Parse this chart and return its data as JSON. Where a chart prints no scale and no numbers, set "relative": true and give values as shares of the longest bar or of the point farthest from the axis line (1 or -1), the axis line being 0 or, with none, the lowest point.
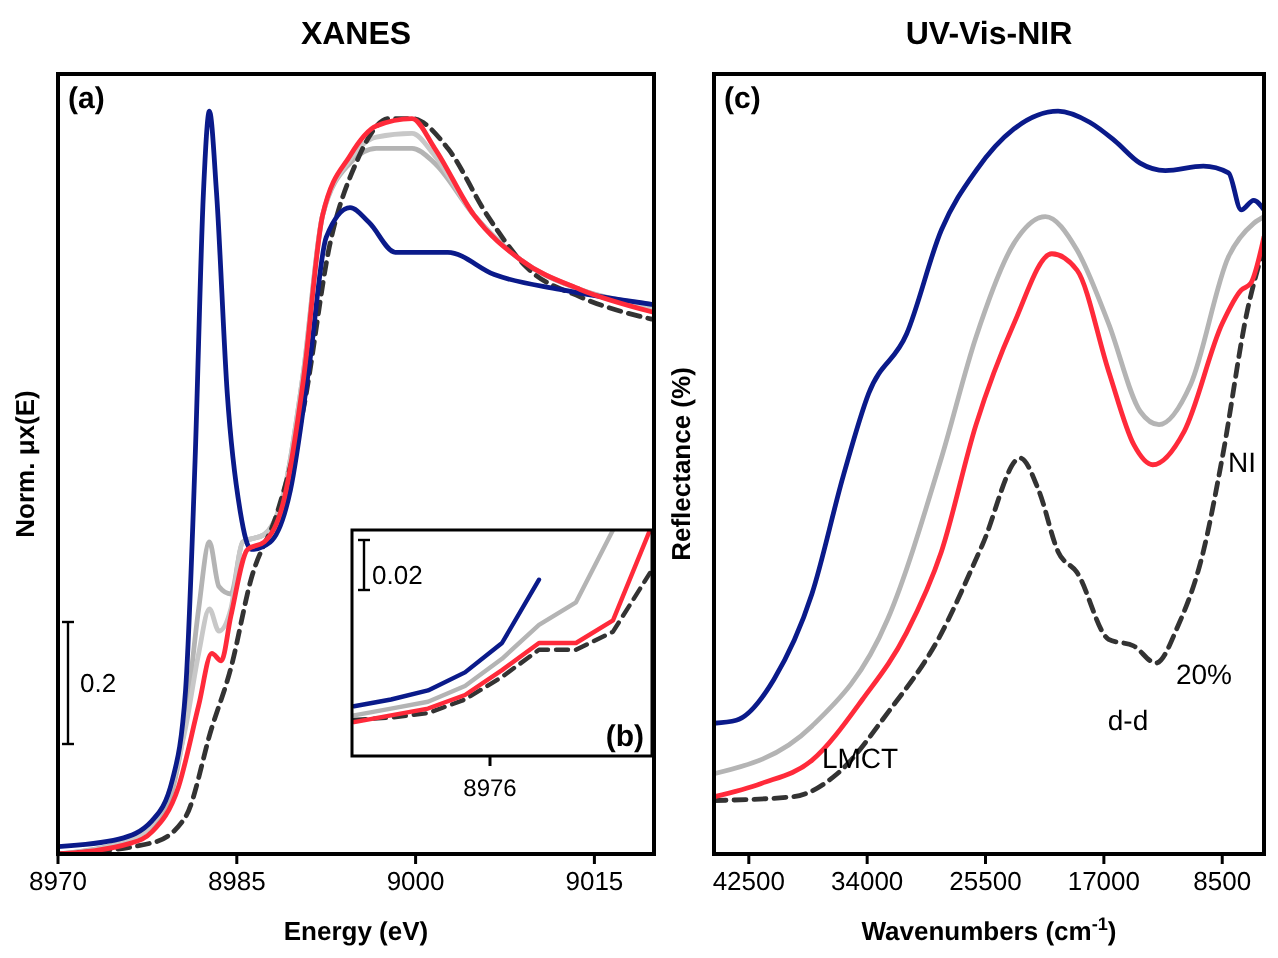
{
  "chart_data": [
    {
      "type": "line",
      "title": "XANES",
      "xlabel": "Energy (eV)",
      "ylabel": "Norm. μx(E)",
      "relative": true,
      "xlim": [
        8970,
        9020
      ],
      "xticks": [
        8970,
        8985,
        9000,
        9015
      ],
      "annotations": [
        "(a)",
        "0.2"
      ],
      "series": [
        {
          "color": "#b4b4b4",
          "x": [
            8970,
            8976,
            8979,
            8980.7,
            8981.8,
            8982.7,
            8983.5,
            8984.5,
            8985.5,
            8987.3,
            8989,
            8990.6,
            8992.2,
            8994.5,
            8996.7,
            8999.7,
            9001.6,
            9004.9,
            9008.8,
            9013.8,
            9019.8
          ],
          "values": [
            0,
            0.02,
            0.06,
            0.18,
            0.33,
            0.42,
            0.36,
            0.35,
            0.42,
            0.43,
            0.49,
            0.65,
            0.86,
            0.93,
            0.95,
            0.95,
            0.93,
            0.86,
            0.8,
            0.76,
            0.74
          ]
        },
        {
          "color": "#c8c8c8",
          "x": [
            8970,
            8976,
            8979,
            8980.7,
            8981.8,
            8982.7,
            8983.5,
            8984.5,
            8985.5,
            8987.3,
            8989,
            8990.6,
            8992.2,
            8994.5,
            8996.7,
            8999.7,
            9001.6,
            9004.9,
            9008.8,
            9013.8,
            9019.8
          ],
          "values": [
            0,
            0.018,
            0.07,
            0.17,
            0.27,
            0.33,
            0.3,
            0.33,
            0.42,
            0.43,
            0.49,
            0.65,
            0.86,
            0.935,
            0.965,
            0.97,
            0.94,
            0.86,
            0.8,
            0.76,
            0.735
          ]
        },
        {
          "color": "#333333",
          "line_style": "dashed",
          "x": [
            8970,
            8977.9,
            8980.7,
            8982.9,
            8984.5,
            8986.2,
            8988.4,
            8990.6,
            8992.8,
            8995,
            8997.8,
            8999.7,
            9002.7,
            9006,
            9009.3,
            9013.8,
            9019.8
          ],
          "values": [
            0,
            0.015,
            0.05,
            0.17,
            0.25,
            0.37,
            0.46,
            0.6,
            0.82,
            0.93,
            0.99,
            0.99,
            0.95,
            0.86,
            0.79,
            0.75,
            0.72
          ]
        },
        {
          "color": "#0a1a8a",
          "x": [
            8970,
            8975.1,
            8977.9,
            8979.6,
            8980.7,
            8981.5,
            8982.2,
            8982.7,
            8983.3,
            8984.2,
            8985.3,
            8986.2,
            8987.8,
            8989.5,
            8991.1,
            8992.5,
            8994.5,
            8996.1,
            8998.3,
            9002.7,
            9006.6,
            9012.1,
            9019.8
          ],
          "values": [
            0.01,
            0.02,
            0.045,
            0.1,
            0.22,
            0.53,
            0.89,
            1,
            0.89,
            0.62,
            0.46,
            0.41,
            0.42,
            0.49,
            0.66,
            0.83,
            0.87,
            0.85,
            0.81,
            0.81,
            0.78,
            0.76,
            0.74
          ]
        },
        {
          "color": "#ff2a3a",
          "x": [
            8970,
            8976.2,
            8977.9,
            8980.1,
            8981.8,
            8982.9,
            8983.7,
            8984.5,
            8985.9,
            8987.3,
            8989,
            8990.6,
            8992.2,
            8994.5,
            8996.7,
            8999.7,
            9001.6,
            9004.9,
            9008.8,
            9013.8,
            9019.8
          ],
          "values": [
            0,
            0.015,
            0.03,
            0.09,
            0.2,
            0.27,
            0.26,
            0.32,
            0.41,
            0.42,
            0.48,
            0.64,
            0.86,
            0.94,
            0.98,
            0.99,
            0.95,
            0.86,
            0.8,
            0.76,
            0.73
          ]
        }
      ]
    },
    {
      "type": "line",
      "relative": true,
      "annotations": [
        "(b)",
        "0.02",
        "8976"
      ],
      "categories": [
        null,
        null,
        null,
        null,
        null,
        null,
        null,
        null,
        null
      ],
      "series": [
        {
          "color": "#b4b4b4",
          "values": [
            0.18,
            0.21,
            0.24,
            0.31,
            0.43,
            0.58,
            0.68,
            1,
            null
          ]
        },
        {
          "color": "#333333",
          "line_style": "dashed",
          "values": [
            0.16,
            0.17,
            0.19,
            0.25,
            0.35,
            0.47,
            0.47,
            0.55,
            0.81
          ]
        },
        {
          "color": "#0a1a8a",
          "values": [
            0.22,
            0.25,
            0.29,
            0.37,
            0.5,
            0.78,
            null,
            null,
            null
          ]
        },
        {
          "color": "#ff2a3a",
          "values": [
            0.15,
            0.18,
            0.21,
            0.27,
            0.38,
            0.5,
            0.5,
            0.6,
            1
          ]
        }
      ]
    },
    {
      "type": "line",
      "title": "UV-Vis-NIR",
      "xlabel": "Wavenumbers (cm$^{-1}$)",
      "ylabel": "Reflectance (%)",
      "relative": true,
      "xlim": [
        45000,
        5500
      ],
      "xticks": [
        42500,
        34000,
        25500,
        17000,
        8500
      ],
      "annotations": [
        "(c)",
        "LMCT",
        "d-d",
        "NI",
        "20%"
      ],
      "series": [
        {
          "color": "#b4b4b4",
          "x": [
            45000,
            37970,
            32530,
            28670,
            26180,
            23460,
            21200,
            18930,
            16660,
            14400,
            13040,
            10770,
            8050,
            6240,
            5500
          ],
          "values": [
            0.108,
            0.172,
            0.316,
            0.533,
            0.696,
            0.822,
            0.858,
            0.813,
            0.714,
            0.596,
            0.578,
            0.632,
            0.804,
            0.849,
            0.858
          ]
        },
        {
          "color": "#333333",
          "line_style": "dashed",
          "x": [
            45000,
            39330,
            36150,
            32530,
            28900,
            25730,
            23010,
            21650,
            20290,
            18930,
            16660,
            14850,
            13260,
            11680,
            9860,
            8500,
            6690,
            5560
          ],
          "values": [
            0.072,
            0.077,
            0.108,
            0.19,
            0.289,
            0.416,
            0.533,
            0.488,
            0.407,
            0.379,
            0.289,
            0.28,
            0.257,
            0.307,
            0.407,
            0.533,
            0.732,
            0.813
          ]
        },
        {
          "color": "#0a1a8a",
          "x": [
            45000,
            43400,
            40700,
            37970,
            35700,
            33890,
            31170,
            28670,
            26180,
            23460,
            20290,
            18020,
            16210,
            14400,
            12580,
            9860,
            8050,
            7140,
            6240,
            5500
          ],
          "values": [
            0.176,
            0.18,
            0.235,
            0.35,
            0.51,
            0.62,
            0.7,
            0.84,
            0.92,
            0.976,
            1,
            0.985,
            0.96,
            0.93,
            0.92,
            0.926,
            0.917,
            0.867,
            0.88,
            0.867
          ]
        },
        {
          "color": "#ff2a3a",
          "x": [
            45000,
            41600,
            37970,
            34340,
            31170,
            28670,
            26180,
            23460,
            20740,
            18930,
            16660,
            14850,
            13490,
            11230,
            8500,
            7140,
            6460,
            5500
          ],
          "values": [
            0.077,
            0.095,
            0.126,
            0.208,
            0.298,
            0.407,
            0.578,
            0.714,
            0.808,
            0.786,
            0.65,
            0.551,
            0.524,
            0.569,
            0.714,
            0.759,
            0.768,
            0.831
          ]
        }
      ]
    }
  ]
}
